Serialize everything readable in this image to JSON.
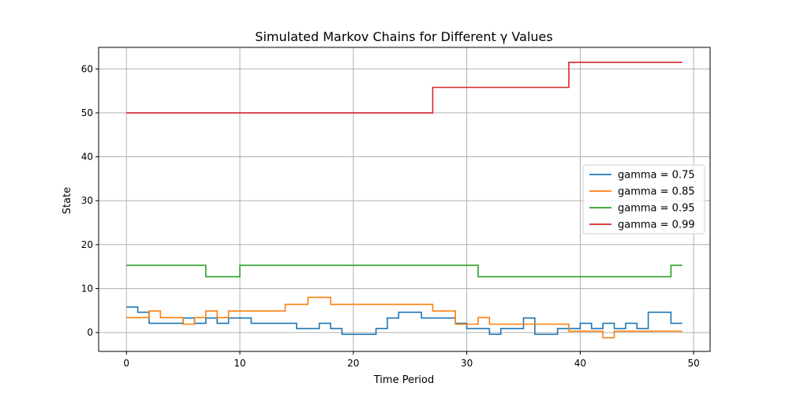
{
  "chart_data": {
    "type": "line",
    "step": "post",
    "title": "Simulated Markov Chains for Different γ Values",
    "xlabel": "Time Period",
    "ylabel": "State",
    "xlim": [
      -2.45,
      51.45
    ],
    "ylim": [
      -4.3,
      64.9
    ],
    "xticks": [
      0,
      10,
      20,
      30,
      40,
      50
    ],
    "yticks": [
      0,
      10,
      20,
      30,
      40,
      50,
      60
    ],
    "grid": true,
    "legend_position": "center-right",
    "x": [
      0,
      1,
      2,
      3,
      4,
      5,
      6,
      7,
      8,
      9,
      10,
      11,
      12,
      13,
      14,
      15,
      16,
      17,
      18,
      19,
      20,
      21,
      22,
      23,
      24,
      25,
      26,
      27,
      28,
      29,
      30,
      31,
      32,
      33,
      34,
      35,
      36,
      37,
      38,
      39,
      40,
      41,
      42,
      43,
      44,
      45,
      46,
      47,
      48,
      49
    ],
    "series": [
      {
        "name": "gamma = 0.75",
        "color": "#1f77b4",
        "values": [
          5.8,
          4.6,
          2.1,
          2.1,
          2.1,
          3.3,
          2.1,
          3.3,
          2.1,
          3.3,
          3.3,
          2.1,
          2.1,
          2.1,
          2.1,
          0.9,
          0.9,
          2.1,
          0.9,
          -0.4,
          -0.4,
          -0.4,
          0.9,
          3.3,
          4.6,
          4.6,
          3.3,
          3.3,
          3.3,
          2.1,
          0.9,
          0.9,
          -0.4,
          0.9,
          0.9,
          3.3,
          -0.4,
          -0.4,
          0.9,
          0.9,
          2.1,
          0.9,
          2.1,
          0.9,
          2.1,
          0.9,
          4.6,
          4.6,
          2.1,
          2.1
        ]
      },
      {
        "name": "gamma = 0.85",
        "color": "#ff7f0e",
        "values": [
          3.4,
          3.4,
          4.9,
          3.4,
          3.4,
          1.9,
          3.4,
          4.9,
          3.4,
          4.9,
          4.9,
          4.9,
          4.9,
          4.9,
          6.4,
          6.4,
          8.0,
          8.0,
          6.4,
          6.4,
          6.4,
          6.4,
          6.4,
          6.4,
          6.4,
          6.4,
          6.4,
          4.9,
          4.9,
          1.9,
          1.9,
          3.4,
          1.9,
          1.9,
          1.9,
          1.9,
          1.9,
          1.9,
          1.9,
          0.3,
          0.3,
          0.3,
          -1.2,
          0.3,
          0.3,
          0.3,
          0.3,
          0.3,
          0.3,
          0.3
        ]
      },
      {
        "name": "gamma = 0.95",
        "color": "#2ca02c",
        "values": [
          15.3,
          15.3,
          15.3,
          15.3,
          15.3,
          15.3,
          15.3,
          12.7,
          12.7,
          12.7,
          15.3,
          15.3,
          15.3,
          15.3,
          15.3,
          15.3,
          15.3,
          15.3,
          15.3,
          15.3,
          15.3,
          15.3,
          15.3,
          15.3,
          15.3,
          15.3,
          15.3,
          15.3,
          15.3,
          15.3,
          15.3,
          12.7,
          12.7,
          12.7,
          12.7,
          12.7,
          12.7,
          12.7,
          12.7,
          12.7,
          12.7,
          12.7,
          12.7,
          12.7,
          12.7,
          12.7,
          12.7,
          12.7,
          15.3,
          15.3
        ]
      },
      {
        "name": "gamma = 0.99",
        "color": "#d62728",
        "values": [
          50,
          50,
          50,
          50,
          50,
          50,
          50,
          50,
          50,
          50,
          50,
          50,
          50,
          50,
          50,
          50,
          50,
          50,
          50,
          50,
          50,
          50,
          50,
          50,
          50,
          50,
          50,
          55.8,
          55.8,
          55.8,
          55.8,
          55.8,
          55.8,
          55.8,
          55.8,
          55.8,
          55.8,
          55.8,
          55.8,
          61.5,
          61.5,
          61.5,
          61.5,
          61.5,
          61.5,
          61.5,
          61.5,
          61.5,
          61.5,
          61.5
        ]
      }
    ]
  }
}
